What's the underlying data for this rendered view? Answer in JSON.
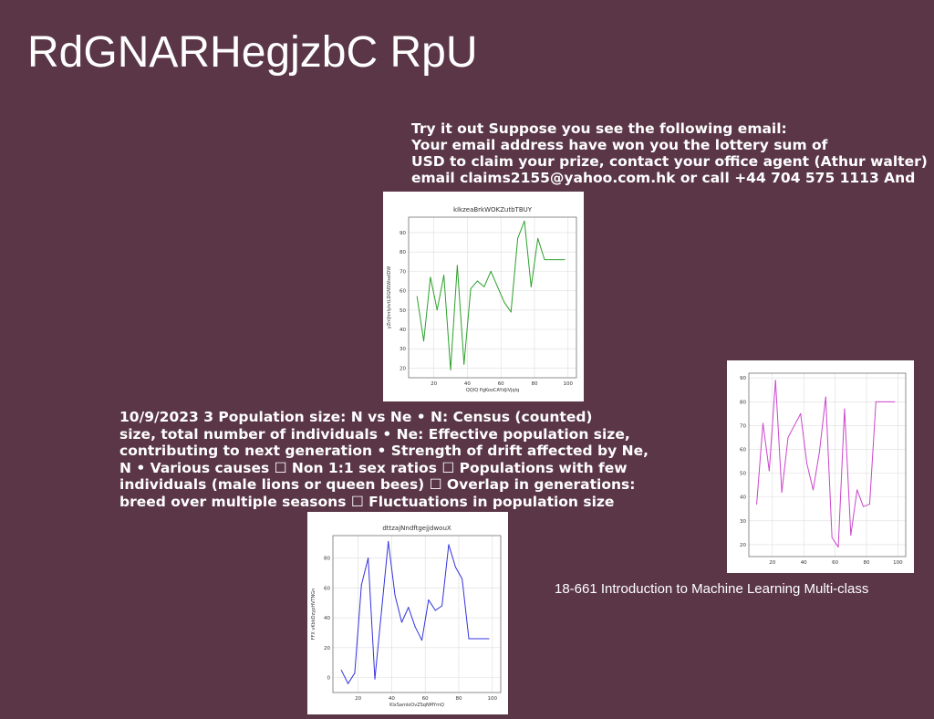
{
  "slide": {
    "title": "RdGNARHegjzbC RpU",
    "email_lines": [
      "Try it out Suppose you see the following email:",
      "Your email address have won you the lottery sum of",
      "USD to claim your prize, contact your office agent (Athur walter)",
      "email claims2155@yahoo.com.hk or call +44 704 575 1113 And"
    ],
    "population_lines": [
      "10/9/2023 3 Population size: N vs Ne • N: Census (counted)",
      "size, total number of individuals • Ne: Effective population size,",
      "contributing to next generation • Strength of drift affected by Ne,",
      "N • Various causes ☐ Non 1:1 sex ratios ☐ Populations with few",
      "individuals (male lions or queen bees) ☐ Overlap in generations:",
      "breed over multiple seasons ☐ Fluctuations in population size"
    ],
    "caption": "18-661 Introduction to Machine Learning Multi-class"
  },
  "colors": {
    "background": "#5a3646",
    "text": "#ffffff",
    "green_line": "#2ca02c",
    "magenta_line": "#cc44cc",
    "blue_line": "#3333dd"
  },
  "chart_data": [
    {
      "id": "green",
      "type": "line",
      "title": "kIkzeaBrkWOKZutbTBUY",
      "xlabel": "QQIQ PgKooCAYdjiVjqlq",
      "ylabel": "yZnljhnlytvtLDGNSWxeIDW",
      "color": "#2ca02c",
      "xlim": [
        5,
        105
      ],
      "ylim": [
        15,
        98
      ],
      "xticks": [
        20,
        40,
        60,
        80,
        100
      ],
      "yticks": [
        20,
        30,
        40,
        50,
        60,
        70,
        80,
        90
      ],
      "x": [
        10,
        14,
        18,
        22,
        26,
        30,
        34,
        38,
        42,
        46,
        50,
        54,
        58,
        62,
        66,
        70,
        74,
        78,
        82,
        86,
        90,
        94,
        98
      ],
      "y": [
        57,
        34,
        67,
        50,
        68,
        19,
        73,
        22,
        61,
        65,
        62,
        70,
        62,
        54,
        49,
        87,
        96,
        62,
        87,
        76,
        76,
        76,
        76
      ]
    },
    {
      "id": "magenta",
      "type": "line",
      "title": "",
      "xlabel": "",
      "ylabel": "",
      "color": "#cc44cc",
      "xlim": [
        5,
        105
      ],
      "ylim": [
        15,
        92
      ],
      "xticks": [
        20,
        40,
        60,
        80,
        100
      ],
      "yticks": [
        20,
        30,
        40,
        50,
        60,
        70,
        80,
        90
      ],
      "x": [
        10,
        14,
        18,
        22,
        26,
        30,
        34,
        38,
        42,
        46,
        50,
        54,
        58,
        62,
        66,
        70,
        74,
        78,
        82,
        86,
        90,
        94,
        98
      ],
      "y": [
        37,
        71,
        51,
        89,
        42,
        65,
        70,
        75,
        54,
        43,
        59,
        82,
        23,
        19,
        77,
        24,
        43,
        36,
        37,
        80,
        80,
        80,
        80
      ]
    },
    {
      "id": "blue",
      "type": "line",
      "title": "dttzajNndftgejjdwouX",
      "xlabel": "KlxSamloOvZSqNMYmQ",
      "ylabel": "FFX vKbkDzypHVTNGn",
      "color": "#3333dd",
      "xlim": [
        5,
        105
      ],
      "ylim": [
        -10,
        95
      ],
      "xticks": [
        20,
        40,
        60,
        80,
        100
      ],
      "yticks": [
        0,
        20,
        40,
        60,
        80
      ],
      "x": [
        10,
        14,
        18,
        22,
        26,
        30,
        34,
        38,
        42,
        46,
        50,
        54,
        58,
        62,
        66,
        70,
        74,
        78,
        82,
        86,
        90,
        94,
        98
      ],
      "y": [
        5,
        -4,
        3,
        62,
        80,
        -1,
        45,
        91,
        55,
        37,
        47,
        34,
        25,
        52,
        45,
        48,
        89,
        74,
        66,
        26,
        26,
        26,
        26
      ]
    }
  ]
}
